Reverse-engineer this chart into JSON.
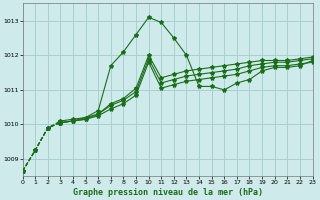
{
  "title": "Graphe pression niveau de la mer (hPa)",
  "background_color": "#ceeaea",
  "grid_color": "#a8d0d0",
  "line_color": "#1a6e1a",
  "x_min": 0,
  "x_max": 23,
  "y_min": 1008.5,
  "y_max": 1013.5,
  "yticks": [
    1009,
    1010,
    1011,
    1012,
    1013
  ],
  "xticks": [
    0,
    1,
    2,
    3,
    4,
    5,
    6,
    7,
    8,
    9,
    10,
    11,
    12,
    13,
    14,
    15,
    16,
    17,
    18,
    19,
    20,
    21,
    22,
    23
  ],
  "series": [
    {
      "data": [
        1008.65,
        1009.25,
        1009.9,
        1010.05,
        1010.1,
        1010.15,
        1010.25,
        1010.45,
        1010.6,
        1010.85,
        1011.8,
        1011.05,
        1011.15,
        1011.25,
        1011.3,
        1011.35,
        1011.4,
        1011.45,
        1011.55,
        1011.65,
        1011.7,
        1011.7,
        1011.75,
        1011.8
      ],
      "dash_end": 3
    },
    {
      "data": [
        1008.65,
        1009.25,
        1009.9,
        1010.05,
        1010.1,
        1010.2,
        1010.3,
        1010.6,
        1010.75,
        1011.05,
        1012.0,
        1011.35,
        1011.45,
        1011.55,
        1011.6,
        1011.65,
        1011.7,
        1011.75,
        1011.8,
        1011.85,
        1011.85,
        1011.85,
        1011.9,
        1011.95
      ],
      "dash_end": 3
    },
    {
      "data": [
        1008.65,
        1009.25,
        1009.9,
        1010.1,
        1010.15,
        1010.2,
        1010.4,
        1011.7,
        1012.1,
        1012.6,
        1013.1,
        1012.95,
        1012.5,
        1012.0,
        1011.1,
        1011.1,
        1011.0,
        1011.2,
        1011.3,
        1011.55,
        1011.65,
        1011.65,
        1011.7,
        1011.85
      ],
      "dash_end": 3
    },
    {
      "data": [
        1008.65,
        1009.25,
        1009.9,
        1010.05,
        1010.1,
        1010.15,
        1010.3,
        1010.55,
        1010.7,
        1010.95,
        1011.9,
        1011.2,
        1011.3,
        1011.4,
        1011.45,
        1011.5,
        1011.55,
        1011.6,
        1011.7,
        1011.75,
        1011.8,
        1011.8,
        1011.85,
        1011.9
      ],
      "dash_end": 3
    }
  ]
}
